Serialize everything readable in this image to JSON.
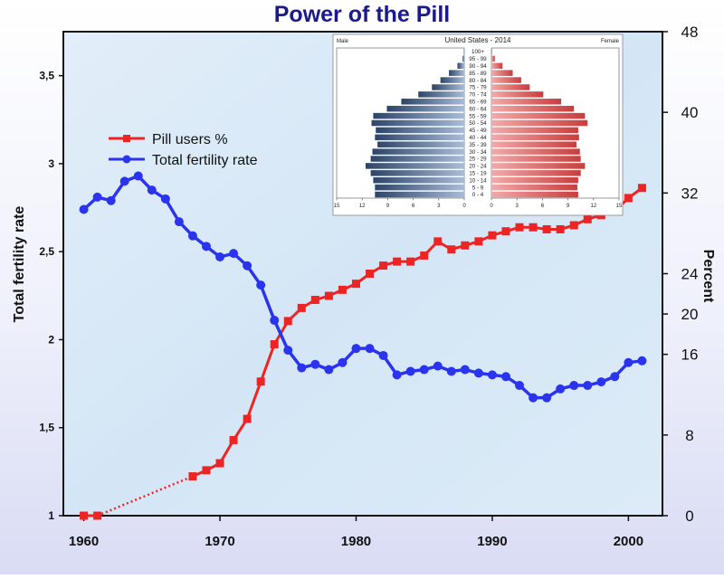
{
  "chart_data": [
    {
      "type": "line",
      "title": "Power of the Pill",
      "ylabel": "Total fertility rate",
      "y2label": "Percent",
      "xlim": [
        1958.5,
        2002.5
      ],
      "ylim": [
        1,
        3.75
      ],
      "y2lim": [
        0,
        48
      ],
      "x_ticks": [
        "1960",
        "1970",
        "1980",
        "1990",
        "2000"
      ],
      "y_ticks": [
        "1",
        "1,5",
        "2",
        "2,5",
        "3",
        "3,5"
      ],
      "y2_ticks": [
        "0",
        "8",
        "16",
        "20",
        "24",
        "32",
        "40",
        "48"
      ],
      "legend_position": "upper-left",
      "grid": false,
      "series": [
        {
          "name": "Pill users %",
          "axis": "right",
          "color": "#ee2424",
          "marker": "square",
          "x": [
            1960,
            1961,
            1968,
            1969,
            1970,
            1971,
            1972,
            1973,
            1974,
            1975,
            1976,
            1977,
            1978,
            1979,
            1980,
            1981,
            1982,
            1983,
            1984,
            1985,
            1986,
            1987,
            1988,
            1989,
            1990,
            1991,
            1992,
            1993,
            1994,
            1995,
            1996,
            1997,
            1998,
            1999,
            2000,
            2001
          ],
          "values": [
            0,
            0,
            3.9,
            4.5,
            5.2,
            7.5,
            9.6,
            13.3,
            17,
            19.3,
            20.6,
            21.4,
            21.8,
            22.4,
            23,
            24,
            24.8,
            25.2,
            25.2,
            25.8,
            27.2,
            26.4,
            26.8,
            27.2,
            27.8,
            28.2,
            28.6,
            28.6,
            28.4,
            28.4,
            28.8,
            29.4,
            29.8,
            30.2,
            31.5,
            32.5
          ]
        },
        {
          "name": "Total fertility rate",
          "axis": "left",
          "color": "#2a33ee",
          "marker": "circle",
          "x": [
            1960,
            1961,
            1962,
            1963,
            1964,
            1965,
            1966,
            1967,
            1968,
            1969,
            1970,
            1971,
            1972,
            1973,
            1974,
            1975,
            1976,
            1977,
            1978,
            1979,
            1980,
            1981,
            1982,
            1983,
            1984,
            1985,
            1986,
            1987,
            1988,
            1989,
            1990,
            1991,
            1992,
            1993,
            1994,
            1995,
            1996,
            1997,
            1998,
            1999,
            2000,
            2001
          ],
          "values": [
            2.74,
            2.81,
            2.79,
            2.9,
            2.93,
            2.85,
            2.8,
            2.67,
            2.59,
            2.53,
            2.47,
            2.49,
            2.42,
            2.31,
            2.11,
            1.94,
            1.84,
            1.86,
            1.83,
            1.87,
            1.95,
            1.95,
            1.91,
            1.8,
            1.82,
            1.83,
            1.85,
            1.82,
            1.83,
            1.81,
            1.8,
            1.79,
            1.74,
            1.67,
            1.67,
            1.72,
            1.74,
            1.74,
            1.76,
            1.79,
            1.87,
            1.88
          ]
        }
      ]
    },
    {
      "type": "bar",
      "orientation": "horizontal",
      "title": "United States - 2014",
      "left_label": "Male",
      "right_label": "Female",
      "x_ticks": [
        "15",
        "12",
        "9",
        "6",
        "3",
        "0",
        "0",
        "3",
        "6",
        "9",
        "12",
        "15"
      ],
      "xlim": [
        0,
        15
      ],
      "categories": [
        "0 - 4",
        "5 - 9",
        "10 - 14",
        "15 - 19",
        "20 - 24",
        "25 - 29",
        "30 - 34",
        "35 - 39",
        "40 - 44",
        "45 - 49",
        "50 - 54",
        "55 - 59",
        "60 - 64",
        "65 - 69",
        "70 - 74",
        "75 - 79",
        "80 - 84",
        "85 - 89",
        "90 - 94",
        "95 - 99",
        "100+"
      ],
      "series": [
        {
          "name": "Male",
          "color": "#4a6b9a",
          "values": [
            10.5,
            10.5,
            10.7,
            11,
            11.6,
            11,
            10.8,
            10.2,
            10.5,
            10.4,
            10.9,
            10.7,
            9.1,
            7.4,
            5.4,
            3.8,
            2.8,
            1.8,
            0.8,
            0.2,
            0.03
          ]
        },
        {
          "name": "Female",
          "color": "#e05a5a",
          "values": [
            10.2,
            10.1,
            10.2,
            10.5,
            11,
            10.5,
            10.4,
            10,
            10.3,
            10.2,
            11.3,
            11,
            9.7,
            8.2,
            6.1,
            4.5,
            3.5,
            2.5,
            1.3,
            0.4,
            0.08
          ]
        }
      ]
    }
  ]
}
